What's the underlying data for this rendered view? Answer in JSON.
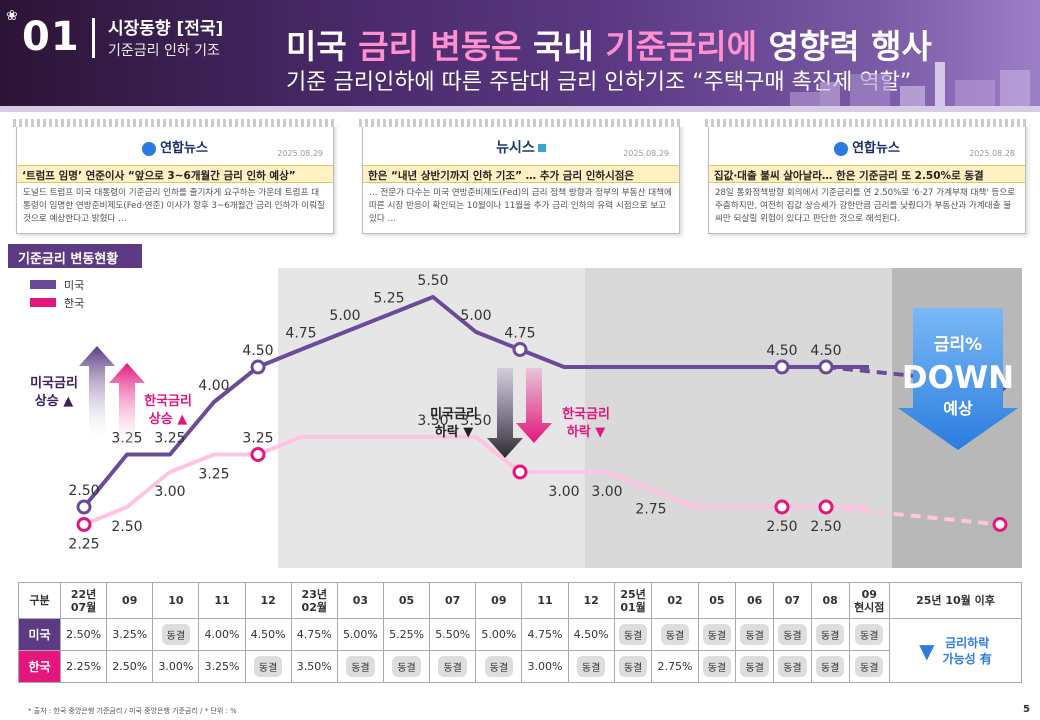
{
  "header": {
    "number": "01",
    "section": "시장동향 [전국]",
    "sub": "기준금리 인하 기조",
    "title_parts": [
      "미국 ",
      "금리 변동은",
      " 국내 ",
      "기준금리에",
      " 영향력 행사"
    ],
    "subtitle": "기준 금리인하에 따른 주담대 금리 인하기조 “주택구매 촉진제 역할”"
  },
  "news": [
    {
      "source": "연합뉴스",
      "date": "2025.08.29",
      "headline": "‘트럼프 임명’ 연준이사 “앞으로 3~6개월간 금리 인하 예상”",
      "body": "도널드 트럼프 미국 대통령이 기준금리 인하를 줄기차게 요구하는 가운데 트럼프 대통령이 임명한 연방준비제도(Fed·연준) 이사가 향후 3~6개월간 금리 인하가 이뤄질 것으로 예상한다고 밝혔다 …"
    },
    {
      "source": "뉴시스",
      "date": "2025.08.29",
      "headline": "한은 “내년 상반기까지 인하 기조” … 추가 금리 인하시점은",
      "body": "… 전문가 다수는 미국 연방준비제도(Fed)의 금리 정책 방향과 정부의 부동산 대책에 따른 시장 반응이 확인되는 10월이나 11월을 추가 금리 인하의 유력 시점으로 보고있다 …"
    },
    {
      "source": "연합뉴스",
      "date": "2025.08.28",
      "headline": "집값·대출 불씨 살아날라… 한은 기준금리 또 2.50%로 동결",
      "body": "28일 통화정책방향 회의에서 기준금리를 연 2.50%로 '6·27 가계부채 대책' 등으로 주춤하지만, 여전히 집값 상승세가 강한만큼 금리를 낮췄다가 부동산과 가계대출 불씨만 되살릴 위험이 있다고 판단한 것으로 해석된다."
    }
  ],
  "chart_title": "기준금리 변동현황",
  "chart_data": {
    "type": "line",
    "legend": [
      "미국",
      "한국"
    ],
    "categories": [
      "22년07월",
      "09",
      "10",
      "11",
      "12",
      "23년02월",
      "03",
      "05",
      "07",
      "09",
      "11",
      "12",
      "25년01월",
      "02",
      "05",
      "06",
      "07",
      "08",
      "09 현시점",
      "25년 10월 이후"
    ],
    "series": [
      {
        "name": "미국",
        "color": "#6b4a9a",
        "values": [
          2.5,
          3.25,
          3.25,
          4.0,
          4.5,
          4.75,
          5.0,
          5.25,
          5.5,
          5.0,
          4.75,
          4.5,
          4.5,
          4.5,
          4.5,
          4.5,
          4.5,
          4.5,
          4.5,
          4.25
        ]
      },
      {
        "name": "한국",
        "color": "#ff9ccf",
        "values": [
          2.25,
          2.5,
          3.0,
          3.25,
          3.25,
          3.5,
          3.5,
          3.5,
          3.5,
          3.5,
          3.0,
          3.0,
          3.0,
          2.75,
          2.5,
          2.5,
          2.5,
          2.5,
          2.5,
          2.25
        ]
      }
    ],
    "us_labels": [
      {
        "i": 0,
        "t": "2.50"
      },
      {
        "i": 1,
        "t": "3.25"
      },
      {
        "i": 2,
        "t": "3.25"
      },
      {
        "i": 3,
        "t": "4.00"
      },
      {
        "i": 4,
        "t": "4.50"
      },
      {
        "i": 5,
        "t": "4.75"
      },
      {
        "i": 6,
        "t": "5.00"
      },
      {
        "i": 7,
        "t": "5.25"
      },
      {
        "i": 8,
        "t": "5.50"
      },
      {
        "i": 9,
        "t": "5.00"
      },
      {
        "i": 10,
        "t": "4.75"
      },
      {
        "i": 16,
        "t": "4.50"
      },
      {
        "i": 17,
        "t": "4.50"
      }
    ],
    "kr_labels": [
      {
        "i": 0,
        "t": "2.25"
      },
      {
        "i": 1,
        "t": "2.50"
      },
      {
        "i": 2,
        "t": "3.00"
      },
      {
        "i": 3,
        "t": "3.25"
      },
      {
        "i": 4,
        "t": "3.25"
      },
      {
        "i": 8,
        "t": "3.50"
      },
      {
        "i": 9,
        "t": "3.50"
      },
      {
        "i": 11,
        "t": "3.00"
      },
      {
        "i": 12,
        "t": "3.00"
      },
      {
        "i": 13,
        "t": "2.75"
      },
      {
        "i": 16,
        "t": "2.50"
      },
      {
        "i": 17,
        "t": "2.50"
      }
    ],
    "annotations": {
      "us_up": "미국금리 상승 ▲",
      "kr_up": "한국금리 상승 ▲",
      "us_down": "미국금리 하락 ▼",
      "kr_down": "한국금리 하락 ▼",
      "forecast_1": "금리%",
      "forecast_2": "DOWN",
      "forecast_3": "예상"
    },
    "ylim": [
      2.0,
      6.0
    ]
  },
  "table": {
    "corner": "구분",
    "headers": [
      "22년\n07월",
      "09",
      "10",
      "11",
      "12",
      "23년\n02월",
      "03",
      "05",
      "07",
      "09",
      "11",
      "12",
      "25년\n01월",
      "02",
      "05",
      "06",
      "07",
      "08",
      "09\n현시점"
    ],
    "last_header": "25년 10월 이후",
    "us_label": "미국",
    "kr_label": "한국",
    "us": [
      "2.50%",
      "3.25%",
      "동결",
      "4.00%",
      "4.50%",
      "4.75%",
      "5.00%",
      "5.25%",
      "5.50%",
      "5.00%",
      "4.75%",
      "4.50%",
      "동결",
      "동결",
      "동결",
      "동결",
      "동결",
      "동결",
      "동결"
    ],
    "kr": [
      "2.25%",
      "2.50%",
      "3.00%",
      "3.25%",
      "동결",
      "3.50%",
      "동결",
      "동결",
      "동결",
      "동결",
      "3.00%",
      "동결",
      "동결",
      "2.75%",
      "동결",
      "동결",
      "동결",
      "동결",
      "동결"
    ],
    "forecast": "금리하락 가능성 有"
  },
  "footer": "* 출처 : 한국 중앙은행 기준금리 / 미국 중앙은행 기준금리 / * 단위 : %",
  "page": "5"
}
